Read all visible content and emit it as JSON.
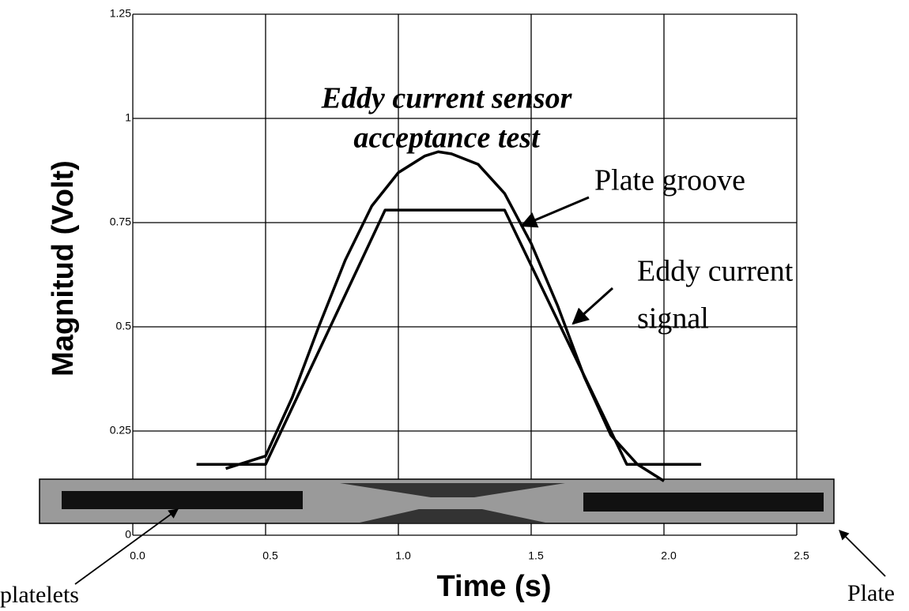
{
  "chart_data": {
    "type": "line",
    "title": [
      "Eddy current sensor",
      "acceptance test"
    ],
    "x_label": "Time (s)",
    "y_label": "Magnitud (Volt)",
    "xlim": [
      0,
      2.5
    ],
    "ylim": [
      0,
      1.25
    ],
    "xticks": [
      {
        "value": 0,
        "label": "0.0"
      },
      0.5,
      {
        "value": 1,
        "label": "1.0"
      },
      1.5,
      {
        "value": 2,
        "label": "2.0"
      },
      2.5
    ],
    "yticks": [
      0,
      0.25,
      0.5,
      0.75,
      1,
      1.25
    ],
    "grid": true,
    "series": [
      {
        "color": "#000000",
        "x": [
          0.24,
          0.5,
          0.95,
          1.4,
          1.86,
          2.14
        ],
        "values": [
          0.17,
          0.17,
          0.78,
          0.78,
          0.17,
          0.17
        ]
      },
      {
        "color": "#000000",
        "x": [
          0.35,
          0.5,
          0.6,
          0.7,
          0.8,
          0.9,
          1.0,
          1.1,
          1.15,
          1.2,
          1.3,
          1.4,
          1.5,
          1.6,
          1.7,
          1.8,
          1.9,
          2.0
        ],
        "values": [
          0.16,
          0.19,
          0.33,
          0.5,
          0.66,
          0.79,
          0.87,
          0.91,
          0.92,
          0.915,
          0.89,
          0.82,
          0.7,
          0.55,
          0.38,
          0.24,
          0.17,
          0.13
        ]
      }
    ],
    "annotations": [
      "Plate groove",
      "Eddy current",
      "signal",
      "platelets",
      "Plate"
    ]
  }
}
